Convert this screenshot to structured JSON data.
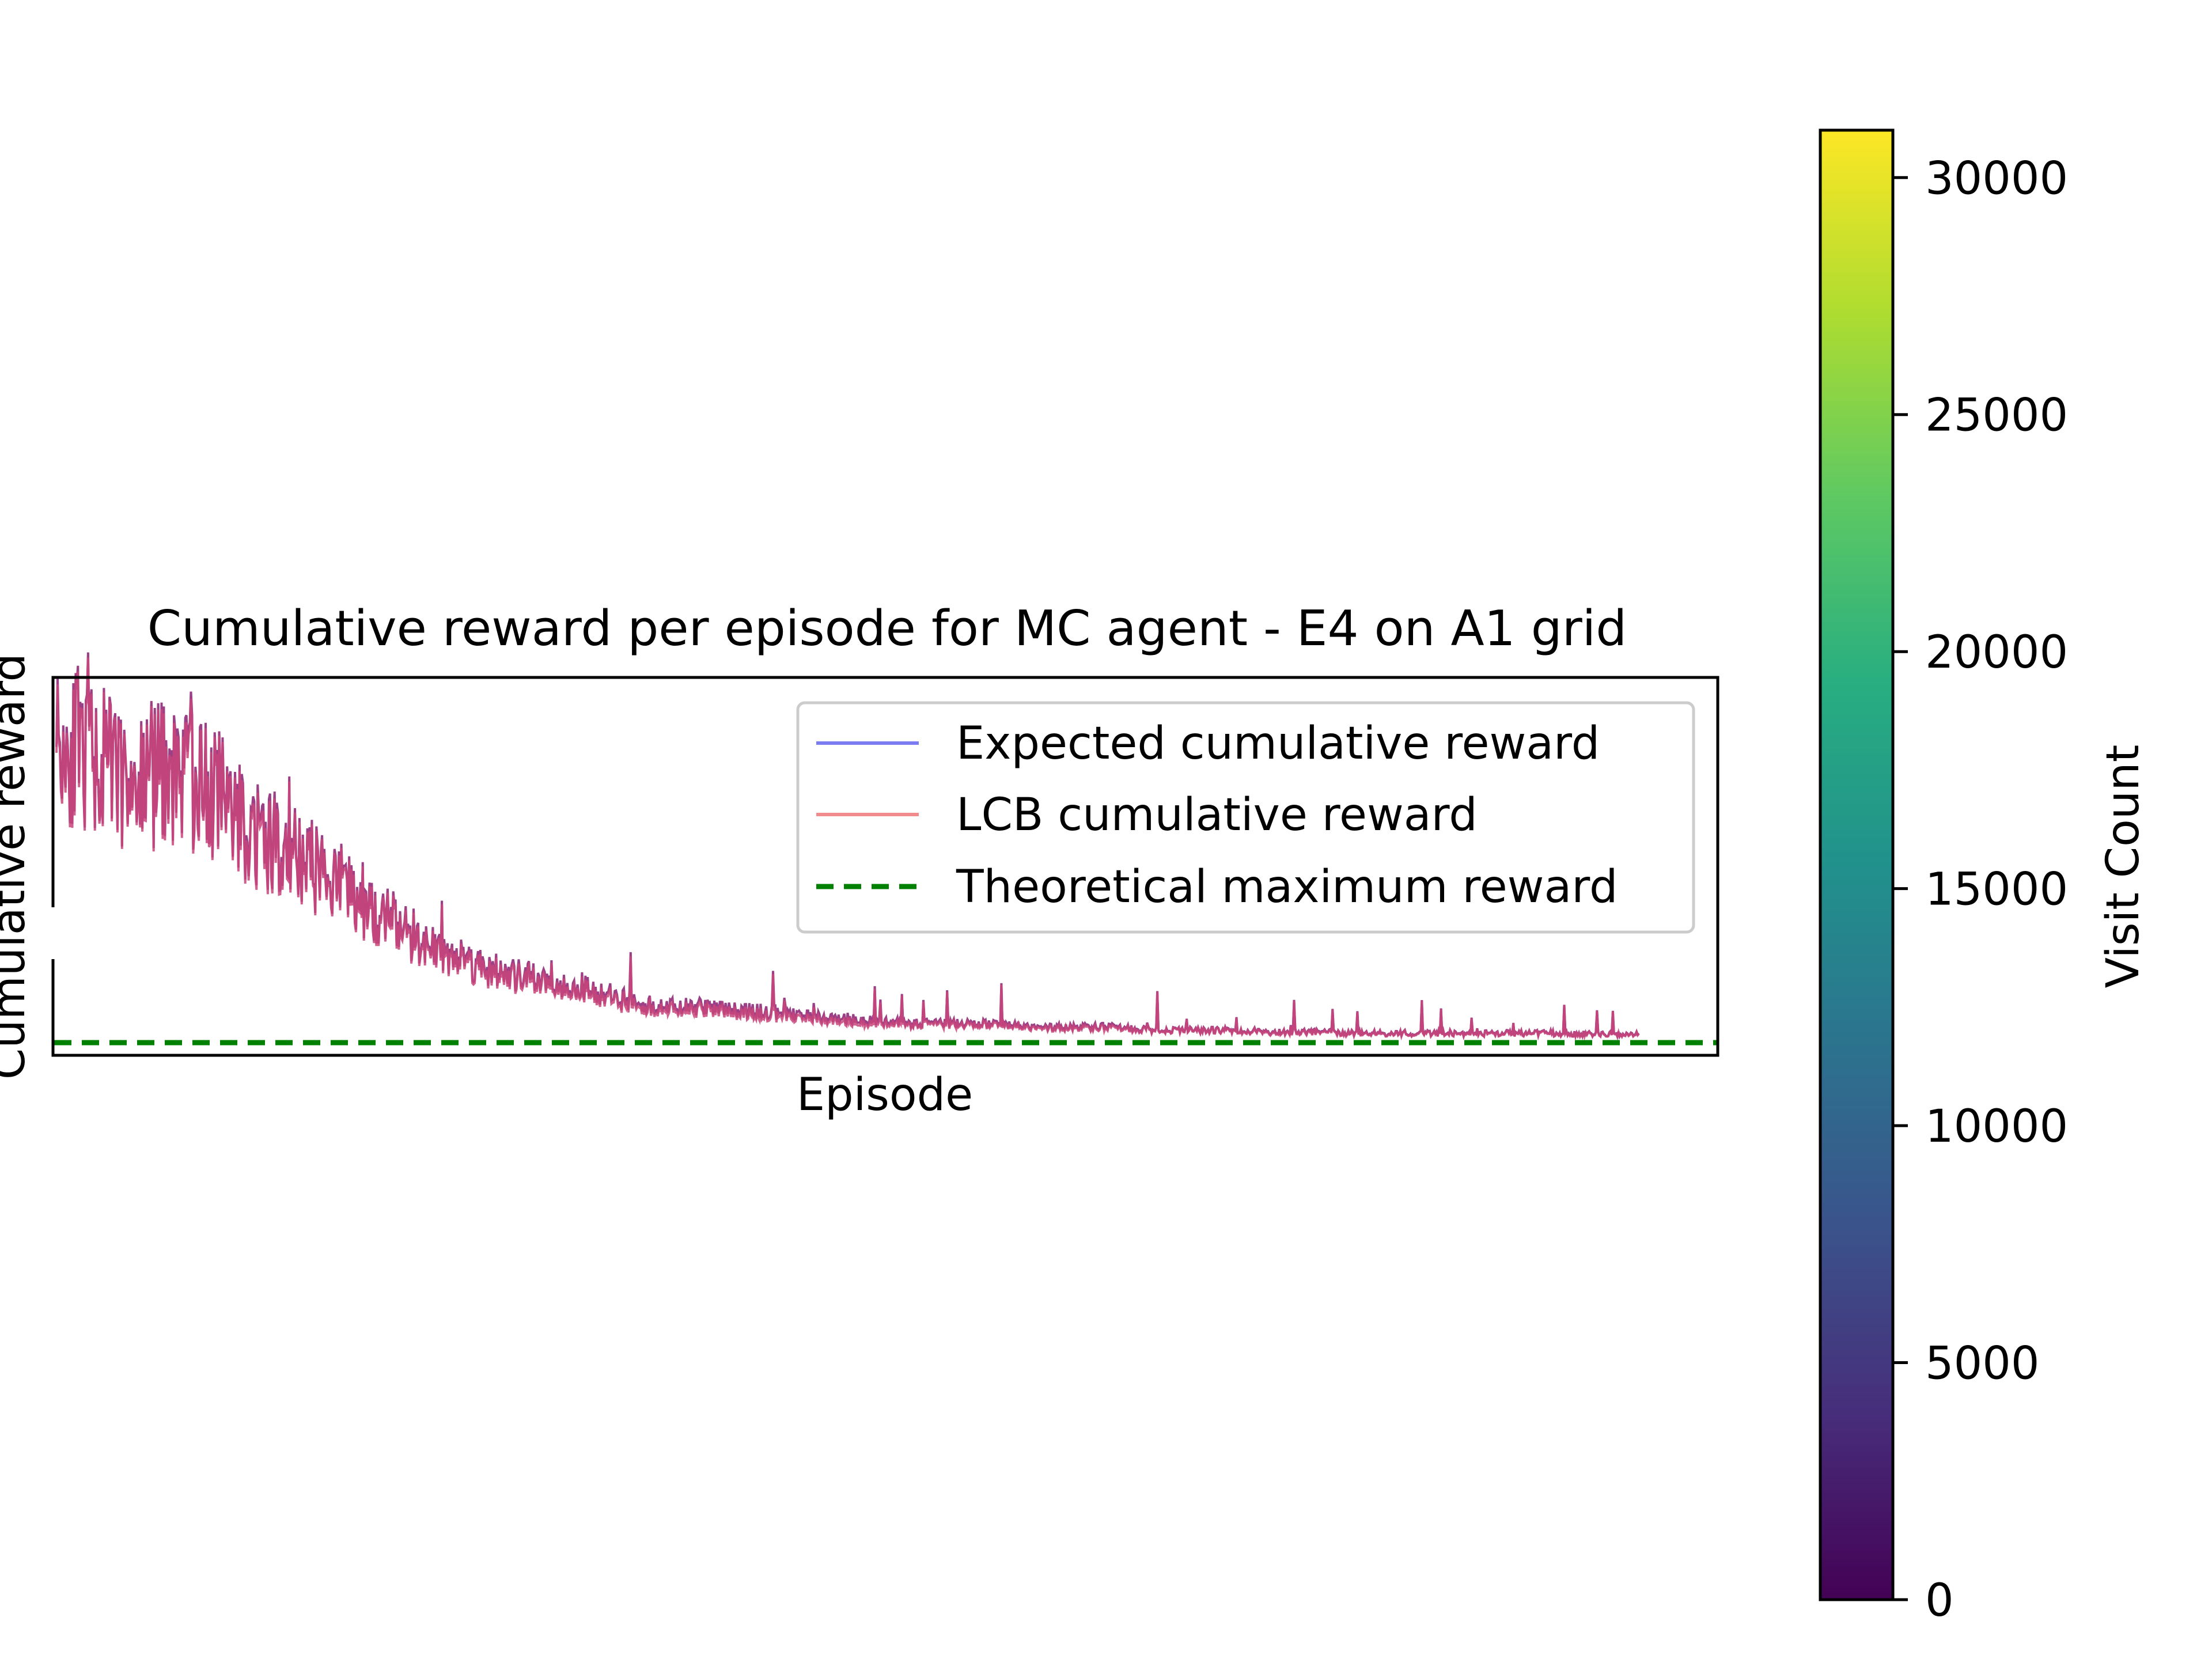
{
  "chart_data": {
    "type": "line",
    "title": "Cumulative reward per episode for MC agent - E4 on A1 grid",
    "xlabel": "Episode",
    "ylabel": "Cumulative reward",
    "x_ticks_visible": false,
    "y_ticks_visible": false,
    "y_axis_broken": true,
    "grid": false,
    "legend_position": "upper-right",
    "episodes": 2000,
    "series": [
      {
        "name": "Expected cumulative reward",
        "color": "#7b7bf2",
        "style": "solid",
        "values": [
          0.92,
          0.85,
          0.78,
          0.82,
          0.74,
          0.62,
          0.55,
          0.48,
          0.38,
          0.3,
          0.25,
          0.2,
          0.18,
          0.16,
          0.12,
          0.1,
          0.1,
          0.09,
          0.08,
          0.07,
          0.06,
          0.05,
          0.05,
          0.05,
          0.04,
          0.04,
          0.04,
          0.03,
          0.03,
          0.03,
          0.025,
          0.025,
          0.02,
          0.02,
          0.02,
          0.02,
          0.02,
          0.02,
          0.015,
          0.015
        ]
      },
      {
        "name": "LCB cumulative reward",
        "color": "#f28b8b",
        "style": "solid",
        "values": [
          0.9,
          0.84,
          0.77,
          0.8,
          0.73,
          0.6,
          0.54,
          0.47,
          0.37,
          0.29,
          0.24,
          0.19,
          0.17,
          0.15,
          0.11,
          0.09,
          0.09,
          0.08,
          0.07,
          0.06,
          0.05,
          0.045,
          0.045,
          0.045,
          0.035,
          0.035,
          0.035,
          0.028,
          0.028,
          0.028,
          0.022,
          0.022,
          0.018,
          0.018,
          0.018,
          0.018,
          0.018,
          0.018,
          0.013,
          0.013
        ]
      },
      {
        "name": "Theoretical maximum reward",
        "color": "#008000",
        "style": "dashed",
        "value": 0
      }
    ],
    "colorbar": {
      "label": "Visit Count",
      "min": 0,
      "max": 31000,
      "ticks": [
        0,
        5000,
        10000,
        15000,
        20000,
        25000,
        30000
      ],
      "tick_labels": [
        "0",
        "5000",
        "10000",
        "15000",
        "20000",
        "25000",
        "30000"
      ],
      "colormap": [
        "#440154",
        "#3b528b",
        "#21918c",
        "#5ec962",
        "#fde725"
      ]
    }
  }
}
